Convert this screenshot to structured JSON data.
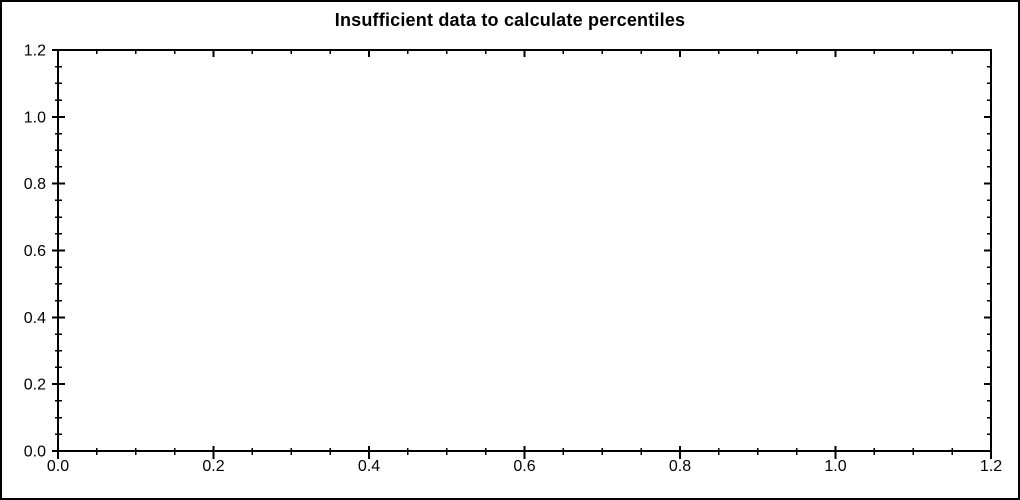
{
  "figure": {
    "background_color": "#ffffff",
    "border_color": "#000000",
    "axis_color": "#000000",
    "text_color": "#000000"
  },
  "chart_data": {
    "type": "line",
    "title": "Insufficient data to calculate percentiles",
    "series": [],
    "x_axis": {
      "label": "",
      "min": 0.0,
      "max": 1.2,
      "major_tick_interval": 0.2,
      "minor_tick_interval": 0.05,
      "tick_labels": [
        "0.0",
        "0.2",
        "0.4",
        "0.6",
        "0.8",
        "1.0",
        "1.2"
      ]
    },
    "y_axis": {
      "label": "",
      "min": 0.0,
      "max": 1.2,
      "major_tick_interval": 0.2,
      "minor_tick_interval": 0.05,
      "tick_labels": [
        "0.0",
        "0.2",
        "0.4",
        "0.6",
        "0.8",
        "1.0",
        "1.2"
      ]
    },
    "grid": false,
    "legend": false,
    "plot_area_empty": true
  }
}
